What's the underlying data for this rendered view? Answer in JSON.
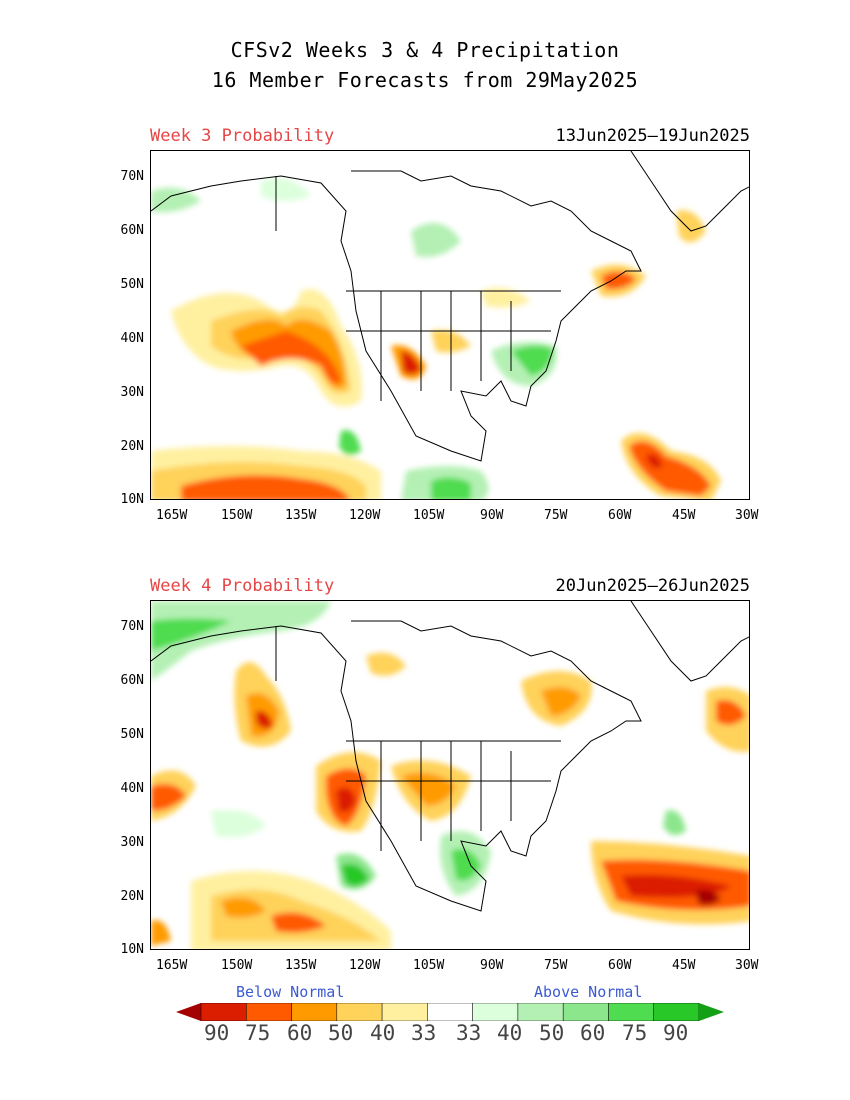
{
  "header": {
    "line1": "CFSv2 Weeks 3 & 4 Precipitation",
    "line2": "16 Member Forecasts from 29May2025"
  },
  "panels": [
    {
      "label": "Week 3 Probability",
      "dates": "13Jun2025—19Jun2025"
    },
    {
      "label": "Week 4 Probability",
      "dates": "20Jun2025—26Jun2025"
    }
  ],
  "axes": {
    "lat_labels": [
      "70N",
      "60N",
      "50N",
      "40N",
      "30N",
      "20N",
      "10N"
    ],
    "lon_labels": [
      "165W",
      "150W",
      "135W",
      "120W",
      "105W",
      "90W",
      "75W",
      "60W",
      "45W",
      "30W"
    ],
    "lon_range": [
      -170,
      -30
    ],
    "lat_range": [
      10,
      75
    ]
  },
  "legend": {
    "below_label": "Below Normal",
    "above_label": "Above Normal",
    "values": [
      "90",
      "75",
      "60",
      "50",
      "40",
      "33",
      "33",
      "40",
      "50",
      "60",
      "75",
      "90"
    ],
    "colors": [
      "#a50000",
      "#dc1e00",
      "#ff5a00",
      "#ff9b00",
      "#ffd25a",
      "#fff0a0",
      "#ffffff",
      "#dcffdc",
      "#b4f0b4",
      "#8ce68c",
      "#50dc50",
      "#28c828",
      "#14a014"
    ]
  }
}
